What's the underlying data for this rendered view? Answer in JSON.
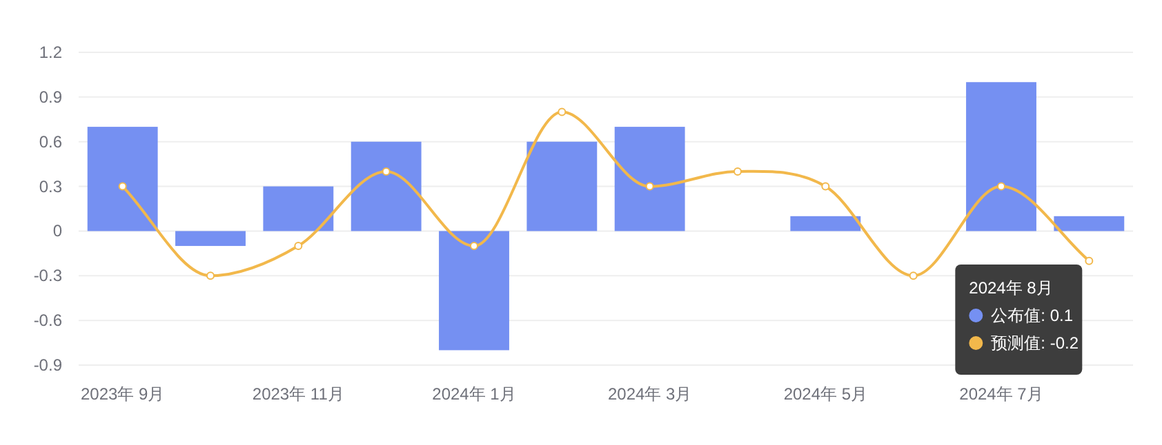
{
  "chart_data": {
    "type": "bar",
    "categories": [
      "2023年 9月",
      null,
      "2023年 11月",
      null,
      "2024年 1月",
      null,
      "2024年 3月",
      null,
      "2024年 5月",
      null,
      "2024年 7月",
      null
    ],
    "series": [
      {
        "name": "公布值",
        "color": "#7590f2",
        "values": [
          0.7,
          -0.1,
          0.3,
          0.6,
          -0.8,
          0.6,
          0.7,
          null,
          0.1,
          null,
          1.0,
          0.1
        ]
      },
      {
        "name": "预测值",
        "type": "line",
        "color": "#f2b84b",
        "marker": "circle",
        "values": [
          0.3,
          -0.3,
          -0.1,
          0.4,
          -0.1,
          0.8,
          0.3,
          0.4,
          0.3,
          -0.3,
          0.3,
          -0.2
        ]
      }
    ],
    "ylim": [
      -0.9,
      1.2
    ],
    "yticks": [
      -0.9,
      -0.6,
      -0.3,
      0,
      0.3,
      0.6,
      0.9,
      1.2
    ],
    "grid": "y",
    "legend": "bottom right",
    "annotations": [
      "2024年 8月",
      ": 0.1",
      ": -0.2"
    ]
  }
}
